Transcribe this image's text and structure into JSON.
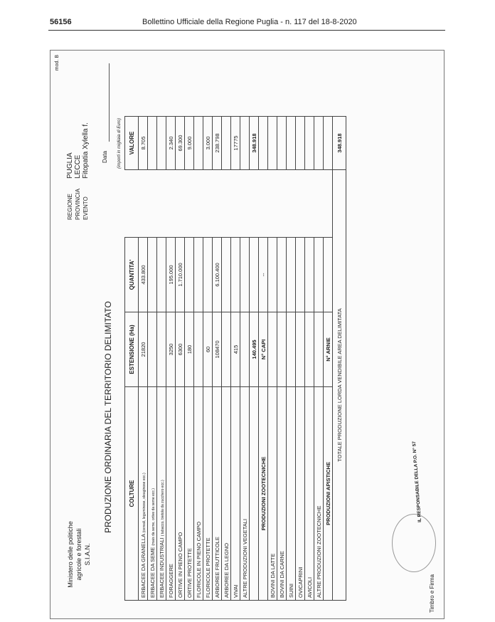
{
  "header": {
    "page_number": "56156",
    "publication": "Bollettino Ufficiale della Regione Puglia - n. 117 del 18-8-2020"
  },
  "form": {
    "ministry": [
      "Ministero delle politiche",
      "agricole e forestali",
      "S.I.A.N."
    ],
    "model": "mod. B",
    "region_info": [
      {
        "label": "REGIONE",
        "value": "PUGLIA"
      },
      {
        "label": "PROVINCIA",
        "value": "LECCE"
      },
      {
        "label": "EVENTO",
        "value": "Fitopatia Xylella f."
      }
    ],
    "date_label": "Data",
    "title": "PRODUZIONE ORDINARIA DEL TERRITORIO DELIMITATO",
    "units_note": "(importi in migliaia di Euro)",
    "columns": [
      "COLTURE",
      "ESTENSIONE (Ha)",
      "QUANTITA'",
      "VALORE"
    ],
    "crop_rows": [
      {
        "name": "ERBACEE DA GRANELLA",
        "note": "(cereali, leguminose, oleaginose ecc.)",
        "estensione": "21820",
        "quantita": "433.800",
        "valore": "8.705"
      },
      {
        "name": "ERBACEE DA SEME",
        "note": "(mais da seme, ortive da seme ecc.)"
      },
      {
        "name": "ERBACEE INDUSTRIALI",
        "note": "( tabacco, bietola da zucchero ecc.)"
      },
      {
        "name": "FORAGGERE",
        "estensione": "3250",
        "quantita": "195.000",
        "valore": "2.340"
      },
      {
        "name": "ORTIVE IN PIENO CAMPO",
        "estensione": "6300",
        "quantita": "1.710.000",
        "valore": "69.300"
      },
      {
        "name": "ORTIVE PROTETTE",
        "estensione": "180",
        "valore": "9.000"
      },
      {
        "name": "FLORICOLE IN PIENO CAMPO"
      },
      {
        "name": "FLORICOLE PROTETTE",
        "estensione": "60",
        "valore": "3.000"
      },
      {
        "name": "ARBOREE FRUTTICOLE",
        "estensione": "108470",
        "quantita": "6.100.400",
        "valore": "238.798"
      },
      {
        "name": "ARBOREE DA LEGNO"
      },
      {
        "name": "VIVAI",
        "estensione": "415",
        "valore": "17775"
      },
      {
        "name": "ALTRE PRODUZIONI VEGETALI"
      }
    ],
    "crop_totals": {
      "estensione": "140.495",
      "valore": "348.918"
    },
    "livestock": {
      "header": "PRODUZIONI ZOOTECNICHE",
      "count_header": "N° CAPI",
      "count_value": "--",
      "rows": [
        "BOVINI DA LATTE",
        "BOVINI DA CARNE",
        "SUINI",
        "OVICAPRINI",
        "AVICOLI",
        "ALTRE PRODUZIONI ZOOTECNICHE"
      ]
    },
    "apiculture": {
      "header": "PRODUZIONI APISTICHE",
      "count_header": "N° ARNIE"
    },
    "total": {
      "label": "TOTALE PRODUZIONE LORDA VENDIBILE AREA DELIMITATA",
      "value": "348.918"
    },
    "signature": "IL RESPONSABILE DELLA P.O. N° 57",
    "stamp_label": "Timbro e Firma"
  }
}
